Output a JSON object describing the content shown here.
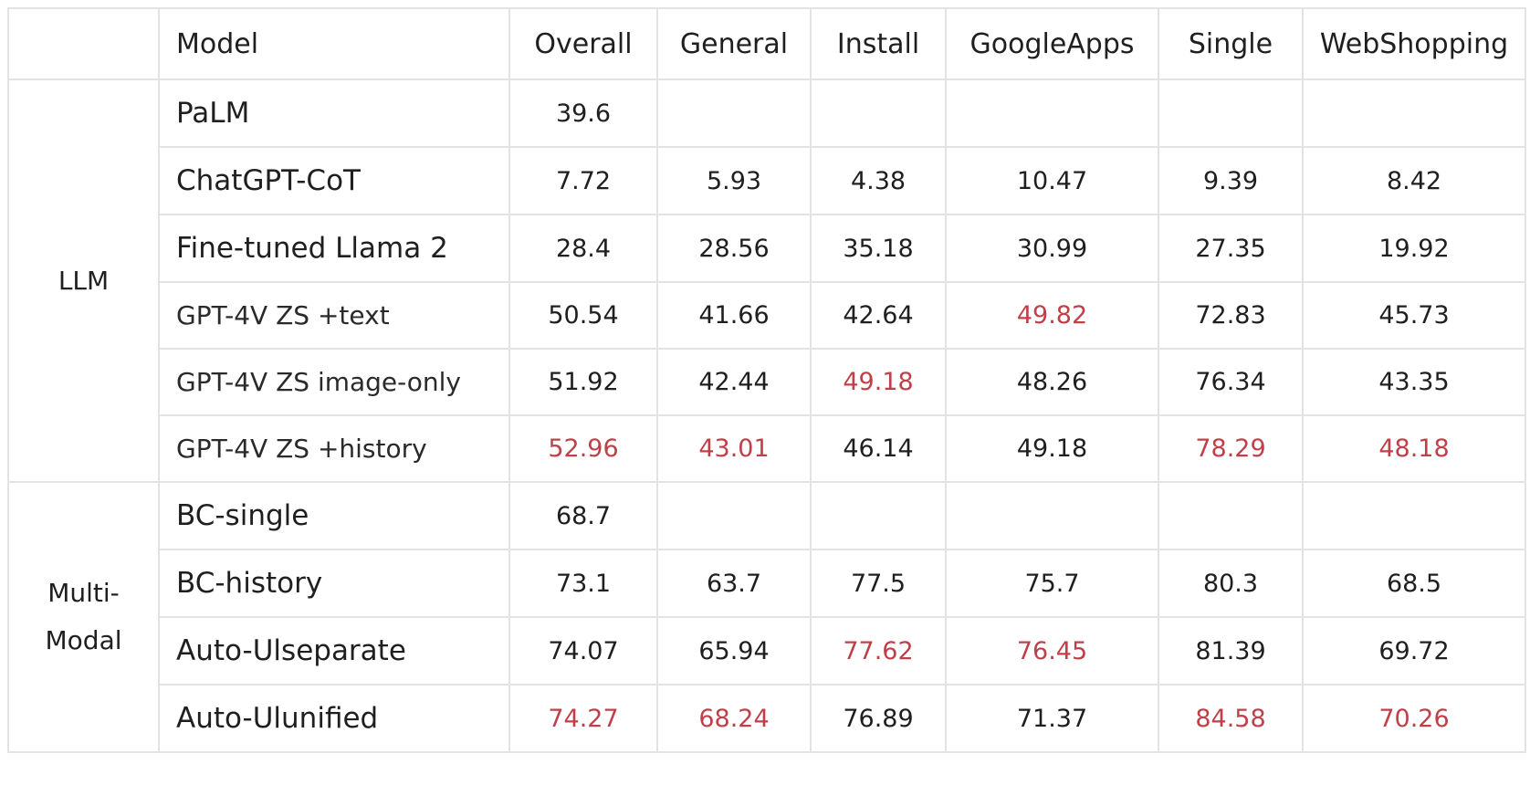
{
  "table": {
    "headers": {
      "group": "",
      "model": "Model",
      "overall": "Overall",
      "general": "General",
      "install": "Install",
      "googleapps": "GoogleApps",
      "single": "Single",
      "webshopping": "WebShopping"
    },
    "groups": [
      {
        "label": "LLM",
        "rows": [
          {
            "model": "PaLM",
            "overall": "39.6",
            "general": "",
            "install": "",
            "googleapps": "",
            "single": "",
            "webshopping": ""
          },
          {
            "model": "ChatGPT-CoT",
            "overall": "7.72",
            "general": "5.93",
            "install": "4.38",
            "googleapps": "10.47",
            "single": "9.39",
            "webshopping": "8.42"
          },
          {
            "model": "Fine-tuned Llama 2",
            "overall": "28.4",
            "general": "28.56",
            "install": "35.18",
            "googleapps": "30.99",
            "single": "27.35",
            "webshopping": "19.92"
          },
          {
            "model": "GPT-4V ZS +text",
            "overall": "50.54",
            "general": "41.66",
            "install": "42.64",
            "googleapps": "49.82",
            "single": "72.83",
            "webshopping": "45.73"
          },
          {
            "model": "GPT-4V ZS image-only",
            "overall": "51.92",
            "general": "42.44",
            "install": "49.18",
            "googleapps": "48.26",
            "single": "76.34",
            "webshopping": "43.35"
          },
          {
            "model": "GPT-4V ZS +history",
            "overall": "52.96",
            "general": "43.01",
            "install": "46.14",
            "googleapps": "49.18",
            "single": "78.29",
            "webshopping": "48.18"
          }
        ]
      },
      {
        "label_line1": "Multi-",
        "label_line2": "Modal",
        "rows": [
          {
            "model": "BC-single",
            "overall": "68.7",
            "general": "",
            "install": "",
            "googleapps": "",
            "single": "",
            "webshopping": ""
          },
          {
            "model": "BC-history",
            "overall": "73.1",
            "general": "63.7",
            "install": "77.5",
            "googleapps": "75.7",
            "single": "80.3",
            "webshopping": "68.5"
          },
          {
            "model": "Auto-Ulseparate",
            "overall": "74.07",
            "general": "65.94",
            "install": "77.62",
            "googleapps": "76.45",
            "single": "81.39",
            "webshopping": "69.72"
          },
          {
            "model": "Auto-Ulunified",
            "overall": "74.27",
            "general": "68.24",
            "install": "76.89",
            "googleapps": "71.37",
            "single": "84.58",
            "webshopping": "70.26"
          }
        ]
      }
    ],
    "highlight_color": "#c0404a",
    "text_color": "#1f1f1f",
    "border_color": "#e3e3e3"
  }
}
